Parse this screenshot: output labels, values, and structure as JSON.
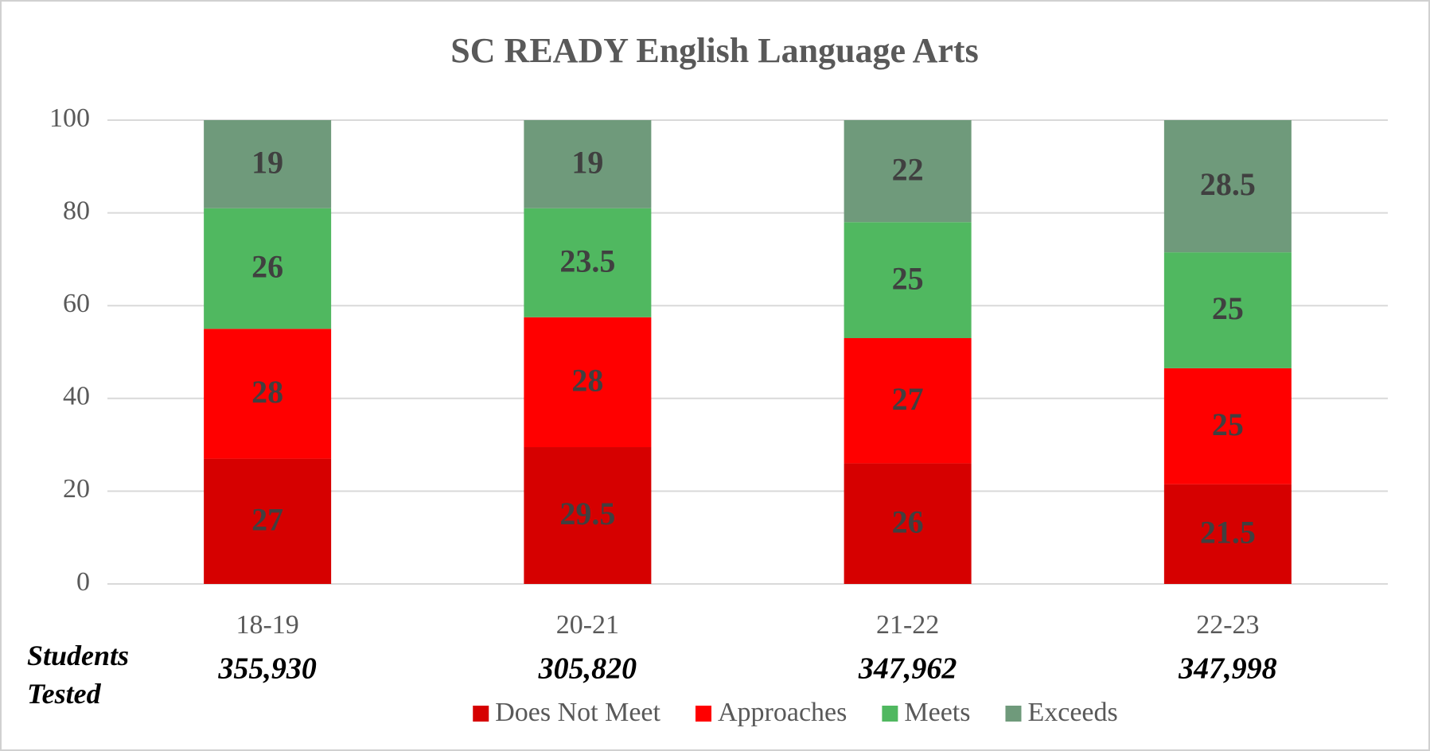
{
  "chart_data": {
    "type": "stacked_bar",
    "title": "SC READY English Language Arts",
    "categories": [
      "18-19",
      "20-21",
      "21-22",
      "22-23"
    ],
    "series": [
      {
        "name": "Does Not Meet",
        "color": "#d60000",
        "values": [
          27,
          29.5,
          26,
          21.5
        ]
      },
      {
        "name": "Approaches",
        "color": "#ff0000",
        "values": [
          28,
          28,
          27,
          25
        ]
      },
      {
        "name": "Meets",
        "color": "#50b860",
        "values": [
          26,
          23.5,
          25,
          25
        ]
      },
      {
        "name": "Exceeds",
        "color": "#6f9a7b",
        "values": [
          19,
          19,
          22,
          28.5
        ]
      }
    ],
    "ylim": [
      0,
      100
    ],
    "yticks": [
      0,
      20,
      40,
      60,
      80,
      100
    ],
    "grid": true,
    "legend": "bottom",
    "students_tested": {
      "label": "Students Tested",
      "values": [
        "355,930",
        "305,820",
        "347,962",
        "347,998"
      ]
    }
  }
}
